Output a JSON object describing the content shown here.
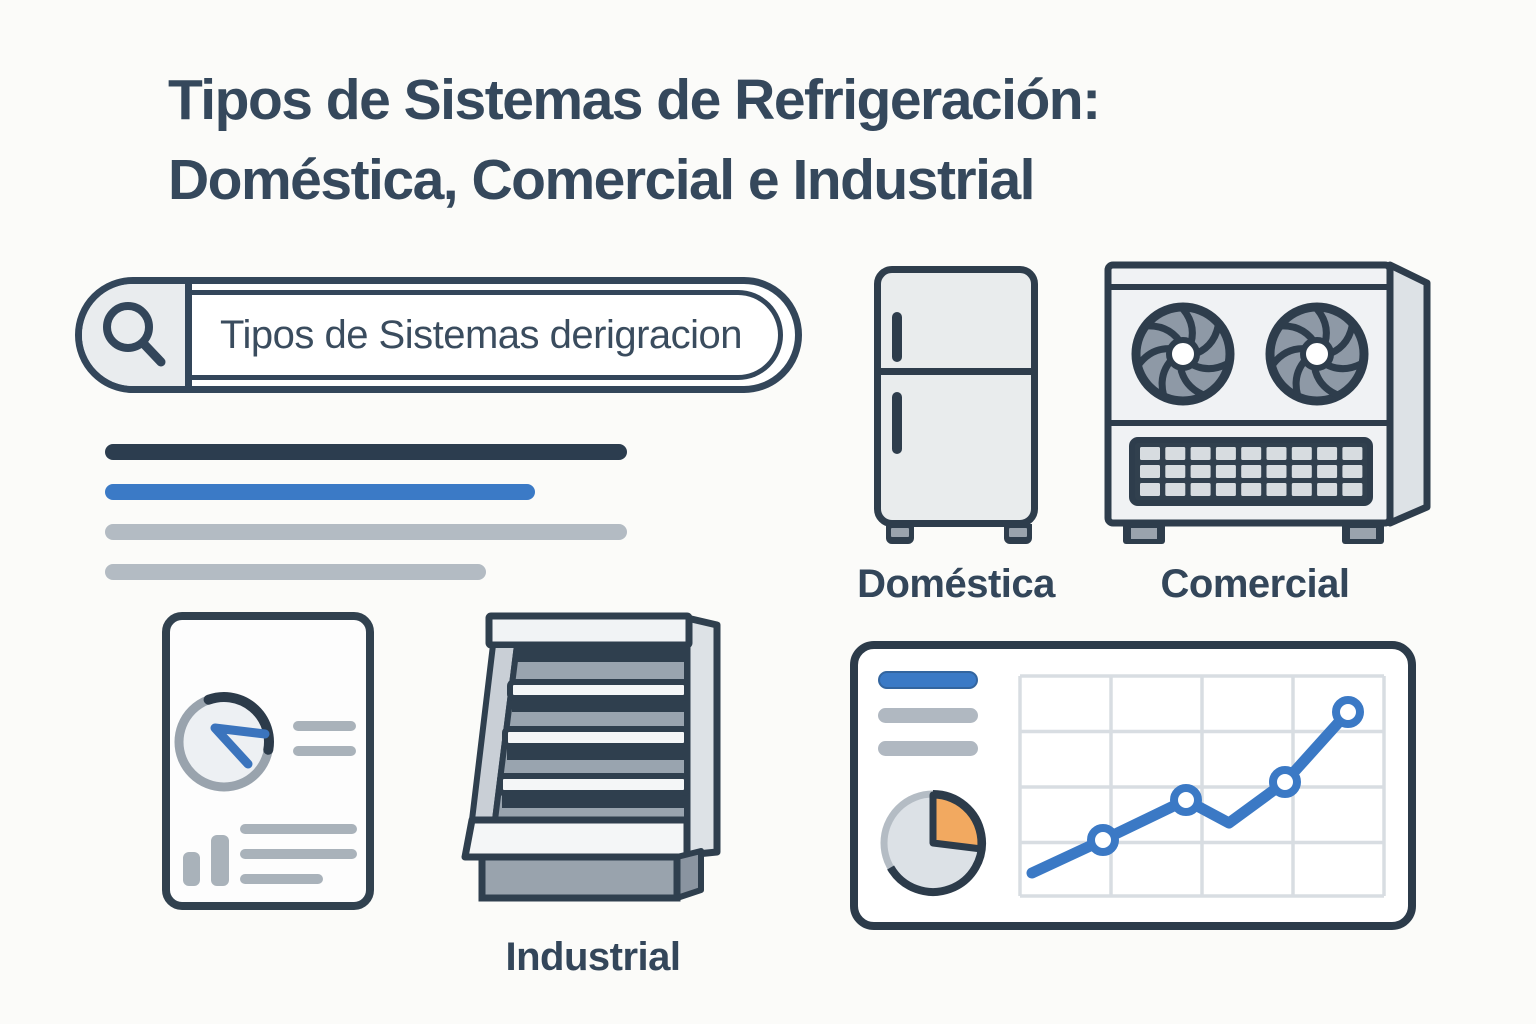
{
  "title": {
    "line1": "Tipos de Sistemas de Refrigeración:",
    "line2": "Doméstica, Comercial e Industrial"
  },
  "search": {
    "query": "Tipos de Sistemas derigracion",
    "icon": "search-icon"
  },
  "sections": {
    "domestic": {
      "label": "Doméstica",
      "icon": "refrigerator-icon"
    },
    "commercial": {
      "label": "Comercial",
      "icon": "condenser-unit-icon"
    },
    "industrial": {
      "label": "Industrial",
      "icon": "display-case-icon"
    }
  },
  "decorations": {
    "skeleton_lines": [
      {
        "color": "#2c3d4f"
      },
      {
        "color": "#3b7ac6"
      },
      {
        "color": "#b3bbc3"
      },
      {
        "color": "#b3bbc3"
      }
    ],
    "document_icon": "report-with-clock-and-bar-chart",
    "dashboard_icon": "stats-card-with-pie-and-line-chart"
  },
  "colors": {
    "ink": "#2e3d4c",
    "title_text": "#35485c",
    "accent_blue": "#3b7ac6",
    "light_gray": "#b3bbc3",
    "panel_gray": "#e9eced",
    "orange_slice": "#f2a960",
    "background": "#fbfbf9"
  }
}
